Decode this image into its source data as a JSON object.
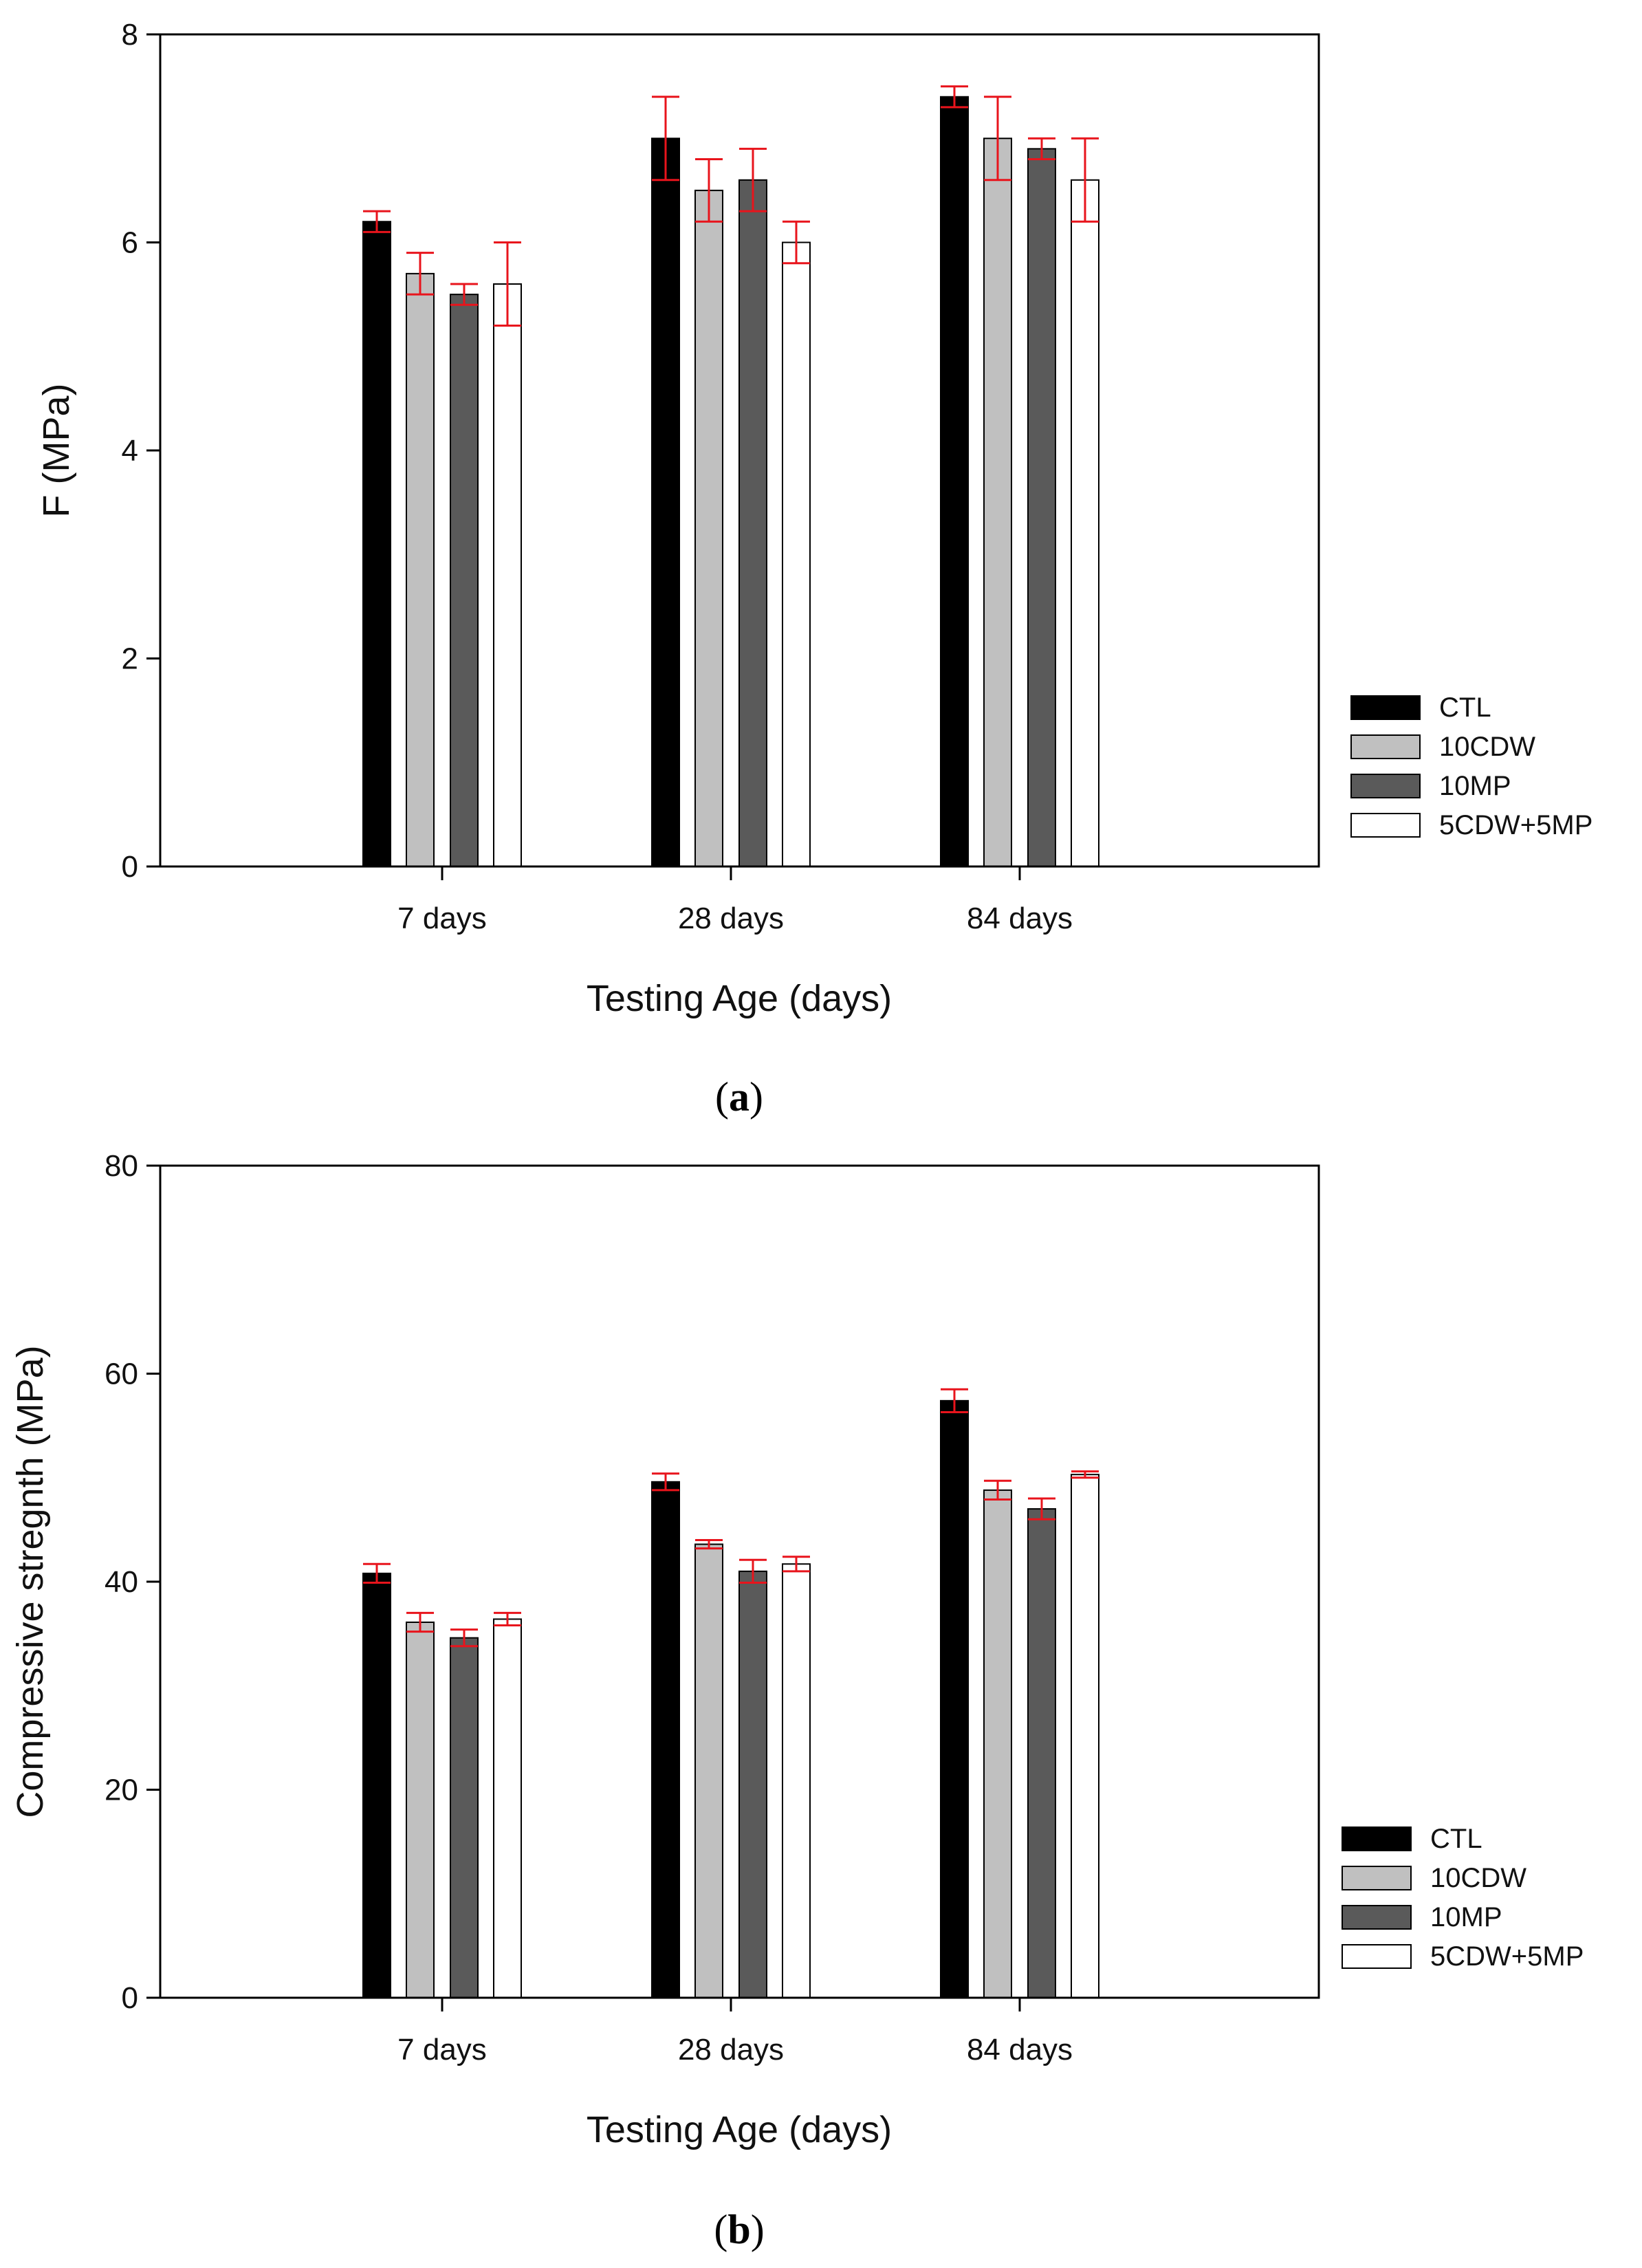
{
  "colors": {
    "CTL": "#000000",
    "10CDW": "#c0c0c0",
    "10MP": "#5a5a5a",
    "5CDW+5MP": "#ffffff",
    "error_bar": "#e8141c",
    "axis": "#000000"
  },
  "chart_data": [
    {
      "type": "bar",
      "panel": "a",
      "caption_open": "(",
      "caption_letter": "a",
      "caption_close": ")",
      "xlabel": "Testing Age (days)",
      "ylabel": "F (MPa)",
      "ylim": [
        0,
        8
      ],
      "yticks": [
        "0",
        "2",
        "4",
        "6",
        "8"
      ],
      "ytick_values": [
        0,
        2,
        4,
        6,
        8
      ],
      "categories": [
        "7 days",
        "28 days",
        "84 days"
      ],
      "legend_position": "right",
      "series": [
        {
          "name": "CTL",
          "values": [
            6.2,
            7.0,
            7.4
          ],
          "errors": [
            0.1,
            0.4,
            0.1
          ]
        },
        {
          "name": "10CDW",
          "values": [
            5.7,
            6.5,
            7.0
          ],
          "errors": [
            0.2,
            0.3,
            0.4
          ]
        },
        {
          "name": "10MP",
          "values": [
            5.5,
            6.6,
            6.9
          ],
          "errors": [
            0.1,
            0.3,
            0.1
          ]
        },
        {
          "name": "5CDW+5MP",
          "values": [
            5.6,
            6.0,
            6.6
          ],
          "errors": [
            0.4,
            0.2,
            0.4
          ]
        }
      ]
    },
    {
      "type": "bar",
      "panel": "b",
      "caption_open": "(",
      "caption_letter": "b",
      "caption_close": ")",
      "xlabel": "Testing Age (days)",
      "ylabel": "Compressive stregnth (MPa)",
      "ylim": [
        0,
        80
      ],
      "yticks": [
        "0",
        "20",
        "40",
        "60",
        "80"
      ],
      "ytick_values": [
        0,
        20,
        40,
        60,
        80
      ],
      "categories": [
        "7 days",
        "28 days",
        "84 days"
      ],
      "legend_position": "right",
      "series": [
        {
          "name": "CTL",
          "values": [
            40.8,
            49.6,
            57.4
          ],
          "errors": [
            0.9,
            0.8,
            1.1
          ]
        },
        {
          "name": "10CDW",
          "values": [
            36.1,
            43.6,
            48.8
          ],
          "errors": [
            0.9,
            0.4,
            0.9
          ]
        },
        {
          "name": "10MP",
          "values": [
            34.6,
            41.0,
            47.0
          ],
          "errors": [
            0.8,
            1.1,
            1.0
          ]
        },
        {
          "name": "5CDW+5MP",
          "values": [
            36.4,
            41.7,
            50.3
          ],
          "errors": [
            0.6,
            0.7,
            0.3
          ]
        }
      ]
    }
  ]
}
